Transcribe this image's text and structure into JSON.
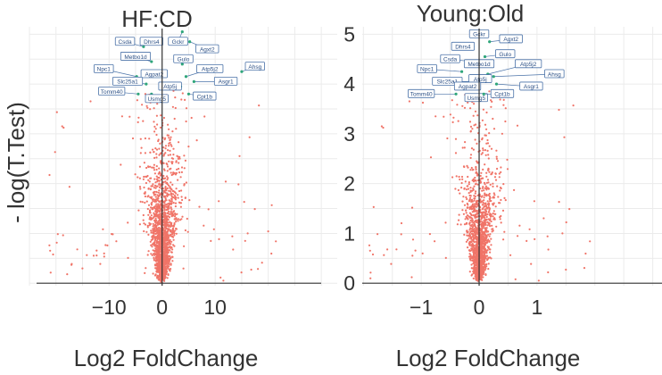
{
  "colors": {
    "point": "#f07468",
    "highlight": "#2fa67a",
    "label_border": "#4a72a8",
    "label_text": "#2b4f85"
  },
  "y_axis_title": "- log(T.Test)",
  "chart_data": [
    {
      "type": "scatter",
      "title": "HF:CD",
      "xlabel": "Log2 FoldChange",
      "ylabel": "- log(T.Test)",
      "xlim": [
        -25,
        33
      ],
      "ylim": [
        -0.05,
        5.15
      ],
      "x_ticks": [
        -10,
        0,
        10
      ],
      "x_tick_labels": [
        "−10",
        "0",
        "10"
      ],
      "y_ticks": [
        0,
        1,
        2,
        3,
        4,
        5
      ],
      "y_tick_labels": [
        "0",
        "1",
        "2",
        "3",
        "4",
        "5"
      ],
      "grid": true,
      "background_points": {
        "count": 1700,
        "description_free": true,
        "v_spread": 4.2,
        "max_neglogp": 4.1
      },
      "labeled_genes": [
        {
          "name": "Csda",
          "x": -3.5,
          "y": 4.75,
          "lx": -7.0,
          "ly": 4.85
        },
        {
          "name": "Dhrs4",
          "x": -0.5,
          "y": 4.9,
          "lx": -2.0,
          "ly": 4.85
        },
        {
          "name": "Gckr",
          "x": 3.8,
          "y": 5.05,
          "lx": 3.0,
          "ly": 4.85
        },
        {
          "name": "Agxt2",
          "x": 5.2,
          "y": 4.85,
          "lx": 8.5,
          "ly": 4.7
        },
        {
          "name": "Metbo1d",
          "x": -2.0,
          "y": 4.45,
          "lx": -5.0,
          "ly": 4.55
        },
        {
          "name": "Gulo",
          "x": 3.8,
          "y": 4.4,
          "lx": 4.0,
          "ly": 4.5
        },
        {
          "name": "Npc1",
          "x": -4.8,
          "y": 4.15,
          "lx": -11.0,
          "ly": 4.3
        },
        {
          "name": "Agpat2",
          "x": -0.5,
          "y": 4.2,
          "lx": -1.5,
          "ly": 4.2
        },
        {
          "name": "Atp5j2",
          "x": 4.5,
          "y": 4.15,
          "lx": 9.0,
          "ly": 4.3
        },
        {
          "name": "Ahsg",
          "x": 15.0,
          "y": 4.25,
          "lx": 17.5,
          "ly": 4.35
        },
        {
          "name": "Slc25a1",
          "x": -3.0,
          "y": 4.0,
          "lx": -6.5,
          "ly": 4.05
        },
        {
          "name": "Atp5j",
          "x": 3.5,
          "y": 3.95,
          "lx": 1.5,
          "ly": 3.95
        },
        {
          "name": "Asgr1",
          "x": 6.0,
          "y": 4.05,
          "lx": 12.0,
          "ly": 4.05
        },
        {
          "name": "Tomm40",
          "x": -4.5,
          "y": 3.8,
          "lx": -9.5,
          "ly": 3.85
        },
        {
          "name": "Usmg5",
          "x": -2.0,
          "y": 3.8,
          "lx": -1.0,
          "ly": 3.7
        },
        {
          "name": "Cpt1b",
          "x": 5.0,
          "y": 3.8,
          "lx": 8.0,
          "ly": 3.75
        }
      ]
    },
    {
      "type": "scatter",
      "title": "Young:Old",
      "xlabel": "Log2 FoldChange",
      "ylabel": "- log(T.Test)",
      "xlim": [
        -2.02,
        3.16
      ],
      "ylim": [
        -0.05,
        5.15
      ],
      "x_ticks": [
        -1,
        0,
        1
      ],
      "x_tick_labels": [
        "−1",
        "0",
        "1"
      ],
      "y_ticks": [
        0,
        1,
        2,
        3,
        4,
        5
      ],
      "y_tick_labels": [
        "0",
        "1",
        "2",
        "3",
        "4",
        "5"
      ],
      "grid": true,
      "background_points": {
        "count": 1400,
        "v_spread": 0.42,
        "max_neglogp": 4.1
      },
      "labeled_genes": [
        {
          "name": "Gckr",
          "x": 0.05,
          "y": 5.05,
          "lx": 0.0,
          "ly": 5.0
        },
        {
          "name": "Agxt2",
          "x": 0.18,
          "y": 4.85,
          "lx": 0.55,
          "ly": 4.9
        },
        {
          "name": "Dhrs4",
          "x": -0.1,
          "y": 4.75,
          "lx": -0.28,
          "ly": 4.75
        },
        {
          "name": "Gulo",
          "x": 0.1,
          "y": 4.55,
          "lx": 0.45,
          "ly": 4.6
        },
        {
          "name": "Csda",
          "x": -0.12,
          "y": 4.45,
          "lx": -0.5,
          "ly": 4.5
        },
        {
          "name": "Metbo1d",
          "x": -0.05,
          "y": 4.45,
          "lx": 0.0,
          "ly": 4.4
        },
        {
          "name": "Atp5j2",
          "x": 0.15,
          "y": 4.2,
          "lx": 0.85,
          "ly": 4.4
        },
        {
          "name": "Npc1",
          "x": -0.3,
          "y": 4.25,
          "lx": -0.9,
          "ly": 4.3
        },
        {
          "name": "Ahsg",
          "x": 0.25,
          "y": 4.15,
          "lx": 1.3,
          "ly": 4.2
        },
        {
          "name": "Slc25a1",
          "x": -0.15,
          "y": 4.05,
          "lx": -0.55,
          "ly": 4.05
        },
        {
          "name": "Atp5j",
          "x": 0.05,
          "y": 4.1,
          "lx": 0.02,
          "ly": 4.1
        },
        {
          "name": "Agpat2",
          "x": -0.05,
          "y": 4.0,
          "lx": -0.2,
          "ly": 3.95
        },
        {
          "name": "Asgr1",
          "x": 0.3,
          "y": 4.0,
          "lx": 0.9,
          "ly": 3.95
        },
        {
          "name": "Tomm40",
          "x": -0.4,
          "y": 3.8,
          "lx": -1.0,
          "ly": 3.8
        },
        {
          "name": "Usmg5",
          "x": -0.02,
          "y": 3.75,
          "lx": -0.05,
          "ly": 3.72
        },
        {
          "name": "Cpt1b",
          "x": 0.08,
          "y": 3.8,
          "lx": 0.4,
          "ly": 3.8
        }
      ]
    }
  ]
}
